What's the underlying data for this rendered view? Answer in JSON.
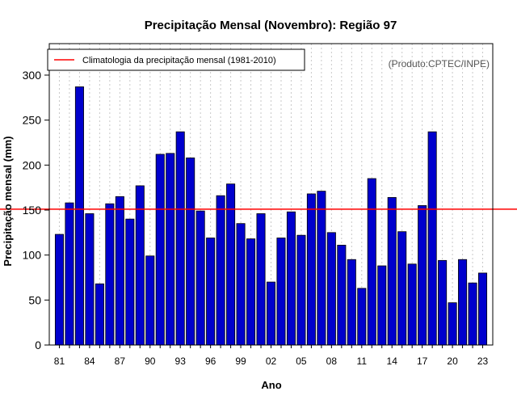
{
  "chart_data": {
    "type": "bar",
    "title": "Precipitação Mensal (Novembro): Região 97",
    "xlabel": "Ano",
    "ylabel": "Precipitação mensal (mm)",
    "credit": "(Produto:CPTEC/INPE)",
    "ylim": [
      0,
      335
    ],
    "yticks": [
      0,
      50,
      100,
      150,
      200,
      250,
      300
    ],
    "bar_color": "#0000CD",
    "climatology": {
      "label": "Climatologia da precipitação mensal (1981-2010)",
      "value": 151,
      "color": "#FF0000"
    },
    "categories": [
      "81",
      "82",
      "83",
      "84",
      "85",
      "86",
      "87",
      "88",
      "89",
      "90",
      "91",
      "92",
      "93",
      "94",
      "95",
      "96",
      "97",
      "98",
      "99",
      "00",
      "01",
      "02",
      "03",
      "04",
      "05",
      "06",
      "07",
      "08",
      "09",
      "10",
      "11",
      "12",
      "13",
      "14",
      "15",
      "16",
      "17",
      "18",
      "19",
      "20",
      "21",
      "22",
      "23"
    ],
    "xtick_labels": [
      "81",
      "84",
      "87",
      "90",
      "93",
      "96",
      "99",
      "02",
      "05",
      "08",
      "11",
      "14",
      "17",
      "20",
      "23"
    ],
    "values": [
      123,
      158,
      287,
      146,
      68,
      157,
      165,
      140,
      177,
      99,
      212,
      213,
      237,
      208,
      149,
      119,
      166,
      179,
      135,
      118,
      146,
      70,
      119,
      148,
      122,
      168,
      171,
      125,
      111,
      95,
      63,
      185,
      88,
      164,
      126,
      90,
      155,
      237,
      94,
      47,
      95,
      69,
      80
    ]
  }
}
